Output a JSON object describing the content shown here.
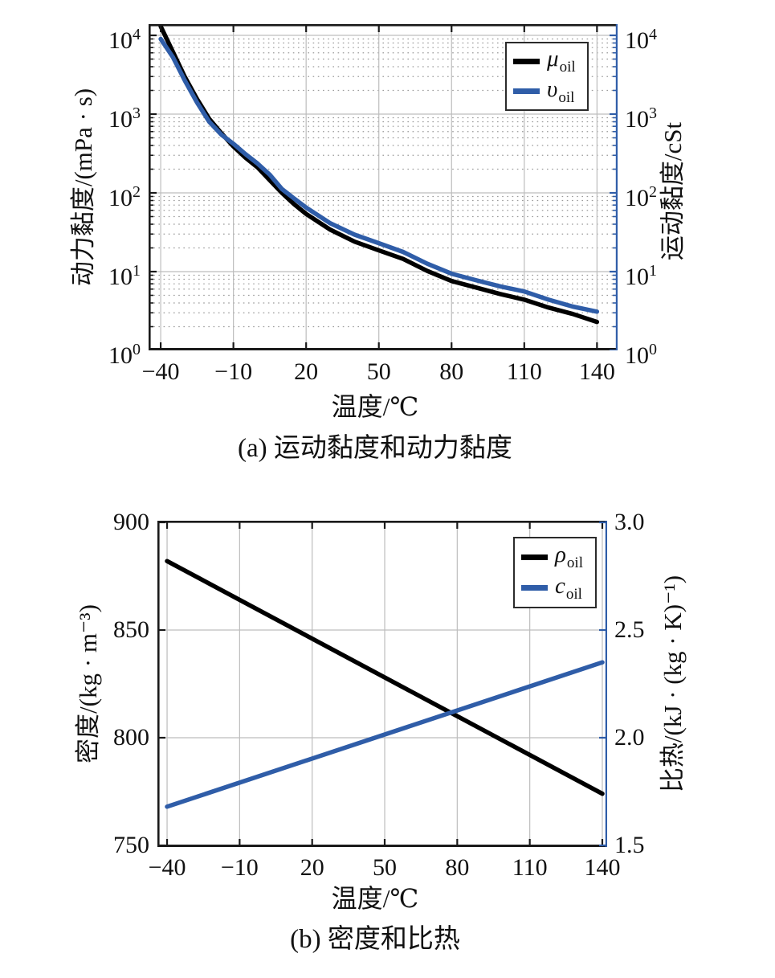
{
  "page": {
    "background": "#ffffff"
  },
  "colors": {
    "accent_blue": "#2f5da8",
    "curve_black": "#000000",
    "grid_major": "#bdbdbd",
    "grid_minor_dot": "#9a9a9a",
    "axis_black": "#1a1a1a"
  },
  "chart_data": [
    {
      "id": "a",
      "type": "line",
      "caption": "(a) 运动黏度和动力黏度",
      "xlabel": "温度/℃",
      "ylabel_left": "动力黏度/(mPa · s)",
      "ylabel_right": "运动黏度/cSt",
      "x_ticks": [
        -40,
        -10,
        20,
        50,
        80,
        110,
        140
      ],
      "x_tick_labels": [
        "−40",
        "−10",
        "20",
        "50",
        "80",
        "110",
        "140"
      ],
      "xlim": [
        -45,
        148.5
      ],
      "yscale": "log",
      "ylim": [
        1,
        13900
      ],
      "y_tick_exponents": [
        4,
        3,
        2,
        1,
        0
      ],
      "grid": {
        "major": true,
        "minor_horizontal_dotted": true
      },
      "legend_position": "upper-right",
      "series": [
        {
          "name": "mu_oil",
          "symbol": "μ",
          "sub": "oil",
          "color": "#000000",
          "axis": "left",
          "x": [
            -40,
            -35,
            -30,
            -25,
            -20,
            -15,
            -10,
            -5,
            0,
            5,
            10,
            15,
            20,
            30,
            40,
            50,
            60,
            70,
            80,
            90,
            100,
            110,
            120,
            130,
            140
          ],
          "y": [
            13000,
            6200,
            2950,
            1550,
            870,
            575,
            390,
            280,
            210,
            145,
            100,
            72,
            54,
            34,
            24,
            18.6,
            14.5,
            10.2,
            7.6,
            6.3,
            5.2,
            4.4,
            3.5,
            2.9,
            2.3
          ]
        },
        {
          "name": "nu_oil",
          "symbol": "υ",
          "sub": "oil",
          "color": "#2f5da8",
          "axis": "right",
          "x": [
            -40,
            -35,
            -30,
            -25,
            -20,
            -15,
            -10,
            -5,
            0,
            5,
            10,
            15,
            20,
            30,
            40,
            50,
            60,
            70,
            80,
            90,
            100,
            110,
            120,
            130,
            140
          ],
          "y": [
            9000,
            5300,
            2650,
            1400,
            800,
            550,
            420,
            310,
            235,
            170,
            112,
            85,
            65,
            41,
            29.5,
            23,
            17.8,
            12.6,
            9.4,
            7.8,
            6.5,
            5.6,
            4.4,
            3.6,
            3.1
          ]
        }
      ]
    },
    {
      "id": "b",
      "type": "line",
      "caption": "(b) 密度和比热",
      "xlabel": "温度/℃",
      "ylabel_left": "密度/(kg · m⁻³)",
      "ylabel_right": "比热/(kJ · (kg · K)⁻¹)",
      "x_ticks": [
        -40,
        -10,
        20,
        50,
        80,
        110,
        140
      ],
      "x_tick_labels": [
        "−40",
        "−10",
        "20",
        "50",
        "80",
        "110",
        "140"
      ],
      "xlim": [
        -44,
        142
      ],
      "yscale": "linear",
      "ylim_left": [
        750,
        900
      ],
      "ylim_right": [
        1.5,
        3.0
      ],
      "y_ticks_left_values": [
        900,
        850,
        800,
        750
      ],
      "y_ticks_left_labels": [
        "900",
        "850",
        "800",
        "750"
      ],
      "y_ticks_right_values": [
        3.0,
        2.5,
        2.0,
        1.5
      ],
      "y_ticks_right_labels": [
        "3.0",
        "2.5",
        "2.0",
        "1.5"
      ],
      "grid": {
        "major": true
      },
      "legend_position": "upper-right",
      "series": [
        {
          "name": "rho_oil",
          "symbol": "ρ",
          "sub": "oil",
          "color": "#000000",
          "axis": "left",
          "x": [
            -40,
            140
          ],
          "y": [
            882,
            774
          ]
        },
        {
          "name": "c_oil",
          "symbol": "c",
          "sub": "oil",
          "color": "#2f5da8",
          "axis": "right",
          "x": [
            -40,
            140
          ],
          "y": [
            1.68,
            2.35
          ]
        }
      ]
    }
  ]
}
